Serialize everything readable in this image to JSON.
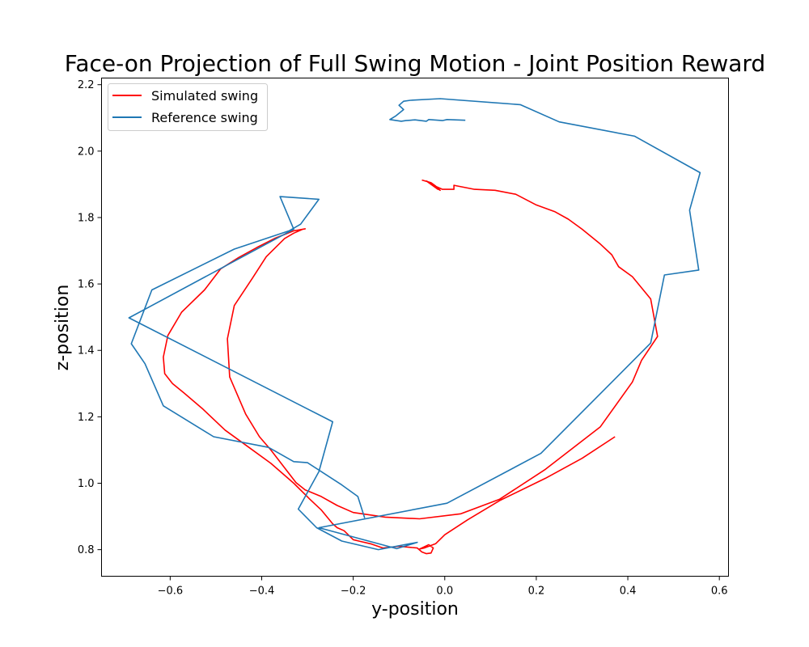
{
  "chart_data": {
    "type": "line",
    "title": "Face-on Projection of Full Swing Motion - Joint Position Reward",
    "xlabel": "y-position",
    "ylabel": "z-position",
    "xlim": [
      -0.75,
      0.62
    ],
    "ylim": [
      0.72,
      2.22
    ],
    "xticks": [
      -0.6,
      -0.4,
      -0.2,
      0.0,
      0.2,
      0.4,
      0.6
    ],
    "xtick_labels": [
      "−0.6",
      "−0.4",
      "−0.2",
      "0.0",
      "0.2",
      "0.4",
      "0.6"
    ],
    "yticks": [
      0.8,
      1.0,
      1.2,
      1.4,
      1.6,
      1.8,
      2.0,
      2.2
    ],
    "ytick_labels": [
      "0.8",
      "1.0",
      "1.2",
      "1.4",
      "1.6",
      "1.8",
      "2.0",
      "2.2"
    ],
    "grid": false,
    "legend_position": "top-left",
    "series": [
      {
        "name": "Simulated swing",
        "color": "#ff0000",
        "points": [
          [
            -0.05,
            1.913
          ],
          [
            -0.03,
            1.905
          ],
          [
            -0.02,
            1.895
          ],
          [
            -0.015,
            1.885
          ],
          [
            -0.04,
            1.91
          ],
          [
            -0.025,
            1.9
          ],
          [
            -0.01,
            1.882
          ],
          [
            -0.03,
            1.9
          ],
          [
            -0.005,
            1.885
          ],
          [
            0.02,
            1.885
          ],
          [
            0.02,
            1.897
          ],
          [
            0.065,
            1.885
          ],
          [
            0.11,
            1.882
          ],
          [
            0.155,
            1.87
          ],
          [
            0.2,
            1.838
          ],
          [
            0.24,
            1.818
          ],
          [
            0.27,
            1.795
          ],
          [
            0.3,
            1.765
          ],
          [
            0.34,
            1.72
          ],
          [
            0.365,
            1.688
          ],
          [
            0.38,
            1.652
          ],
          [
            0.41,
            1.622
          ],
          [
            0.45,
            1.555
          ],
          [
            0.465,
            1.442
          ],
          [
            0.43,
            1.37
          ],
          [
            0.41,
            1.305
          ],
          [
            0.34,
            1.17
          ],
          [
            0.22,
            1.042
          ],
          [
            0.12,
            0.952
          ],
          [
            0.035,
            0.908
          ],
          [
            -0.055,
            0.893
          ],
          [
            -0.13,
            0.898
          ],
          [
            -0.2,
            0.912
          ],
          [
            -0.235,
            0.933
          ],
          [
            -0.27,
            0.96
          ],
          [
            -0.305,
            0.98
          ],
          [
            -0.325,
            1.002
          ],
          [
            -0.38,
            1.1
          ],
          [
            -0.405,
            1.14
          ],
          [
            -0.435,
            1.208
          ],
          [
            -0.47,
            1.32
          ],
          [
            -0.475,
            1.435
          ],
          [
            -0.46,
            1.535
          ],
          [
            -0.42,
            1.618
          ],
          [
            -0.39,
            1.682
          ],
          [
            -0.35,
            1.737
          ],
          [
            -0.33,
            1.753
          ],
          [
            -0.31,
            1.765
          ],
          [
            -0.305,
            1.766
          ],
          [
            -0.33,
            1.76
          ],
          [
            -0.37,
            1.738
          ],
          [
            -0.41,
            1.71
          ],
          [
            -0.45,
            1.68
          ],
          [
            -0.49,
            1.645
          ],
          [
            -0.525,
            1.582
          ],
          [
            -0.575,
            1.515
          ],
          [
            -0.605,
            1.445
          ],
          [
            -0.615,
            1.38
          ],
          [
            -0.612,
            1.33
          ],
          [
            -0.595,
            1.3
          ],
          [
            -0.57,
            1.272
          ],
          [
            -0.53,
            1.225
          ],
          [
            -0.48,
            1.16
          ],
          [
            -0.43,
            1.11
          ],
          [
            -0.38,
            1.06
          ],
          [
            -0.33,
            1.0
          ],
          [
            -0.295,
            0.952
          ],
          [
            -0.27,
            0.92
          ],
          [
            -0.245,
            0.878
          ],
          [
            -0.235,
            0.866
          ],
          [
            -0.22,
            0.857
          ],
          [
            -0.2,
            0.83
          ],
          [
            -0.185,
            0.825
          ],
          [
            -0.16,
            0.817
          ],
          [
            -0.135,
            0.805
          ],
          [
            -0.1,
            0.81
          ],
          [
            -0.06,
            0.805
          ],
          [
            -0.05,
            0.793
          ],
          [
            -0.04,
            0.788
          ],
          [
            -0.03,
            0.79
          ],
          [
            -0.025,
            0.805
          ],
          [
            -0.035,
            0.815
          ],
          [
            -0.055,
            0.802
          ],
          [
            -0.045,
            0.805
          ],
          [
            -0.02,
            0.818
          ],
          [
            0.0,
            0.845
          ],
          [
            0.05,
            0.89
          ],
          [
            0.12,
            0.948
          ],
          [
            0.22,
            1.015
          ],
          [
            0.3,
            1.075
          ],
          [
            0.372,
            1.14
          ]
        ]
      },
      {
        "name": "Reference swing",
        "color": "#1f77b4",
        "points": [
          [
            0.045,
            2.093
          ],
          [
            0.005,
            2.095
          ],
          [
            -0.005,
            2.092
          ],
          [
            -0.035,
            2.095
          ],
          [
            -0.04,
            2.09
          ],
          [
            -0.065,
            2.094
          ],
          [
            -0.085,
            2.092
          ],
          [
            -0.095,
            2.09
          ],
          [
            -0.12,
            2.095
          ],
          [
            -0.108,
            2.105
          ],
          [
            -0.09,
            2.125
          ],
          [
            -0.1,
            2.138
          ],
          [
            -0.09,
            2.15
          ],
          [
            -0.075,
            2.153
          ],
          [
            -0.01,
            2.158
          ],
          [
            0.165,
            2.14
          ],
          [
            0.25,
            2.088
          ],
          [
            0.415,
            2.045
          ],
          [
            0.558,
            1.935
          ],
          [
            0.535,
            1.822
          ],
          [
            0.555,
            1.642
          ],
          [
            0.48,
            1.627
          ],
          [
            0.45,
            1.422
          ],
          [
            0.21,
            1.09
          ],
          [
            0.005,
            0.94
          ],
          [
            -0.275,
            0.866
          ],
          [
            -0.105,
            0.803
          ],
          [
            -0.06,
            0.822
          ],
          [
            -0.145,
            0.8
          ],
          [
            -0.225,
            0.826
          ],
          [
            -0.28,
            0.866
          ],
          [
            -0.32,
            0.922
          ],
          [
            -0.275,
            1.035
          ],
          [
            -0.245,
            1.185
          ],
          [
            -0.69,
            1.498
          ],
          [
            -0.33,
            1.765
          ],
          [
            -0.36,
            1.863
          ],
          [
            -0.275,
            1.855
          ],
          [
            -0.315,
            1.78
          ],
          [
            -0.34,
            1.76
          ],
          [
            -0.46,
            1.705
          ],
          [
            -0.64,
            1.582
          ],
          [
            -0.685,
            1.42
          ],
          [
            -0.655,
            1.36
          ],
          [
            -0.615,
            1.233
          ],
          [
            -0.505,
            1.14
          ],
          [
            -0.385,
            1.108
          ],
          [
            -0.33,
            1.065
          ],
          [
            -0.3,
            1.062
          ],
          [
            -0.225,
            0.995
          ],
          [
            -0.19,
            0.96
          ],
          [
            -0.175,
            0.895
          ]
        ]
      }
    ]
  }
}
